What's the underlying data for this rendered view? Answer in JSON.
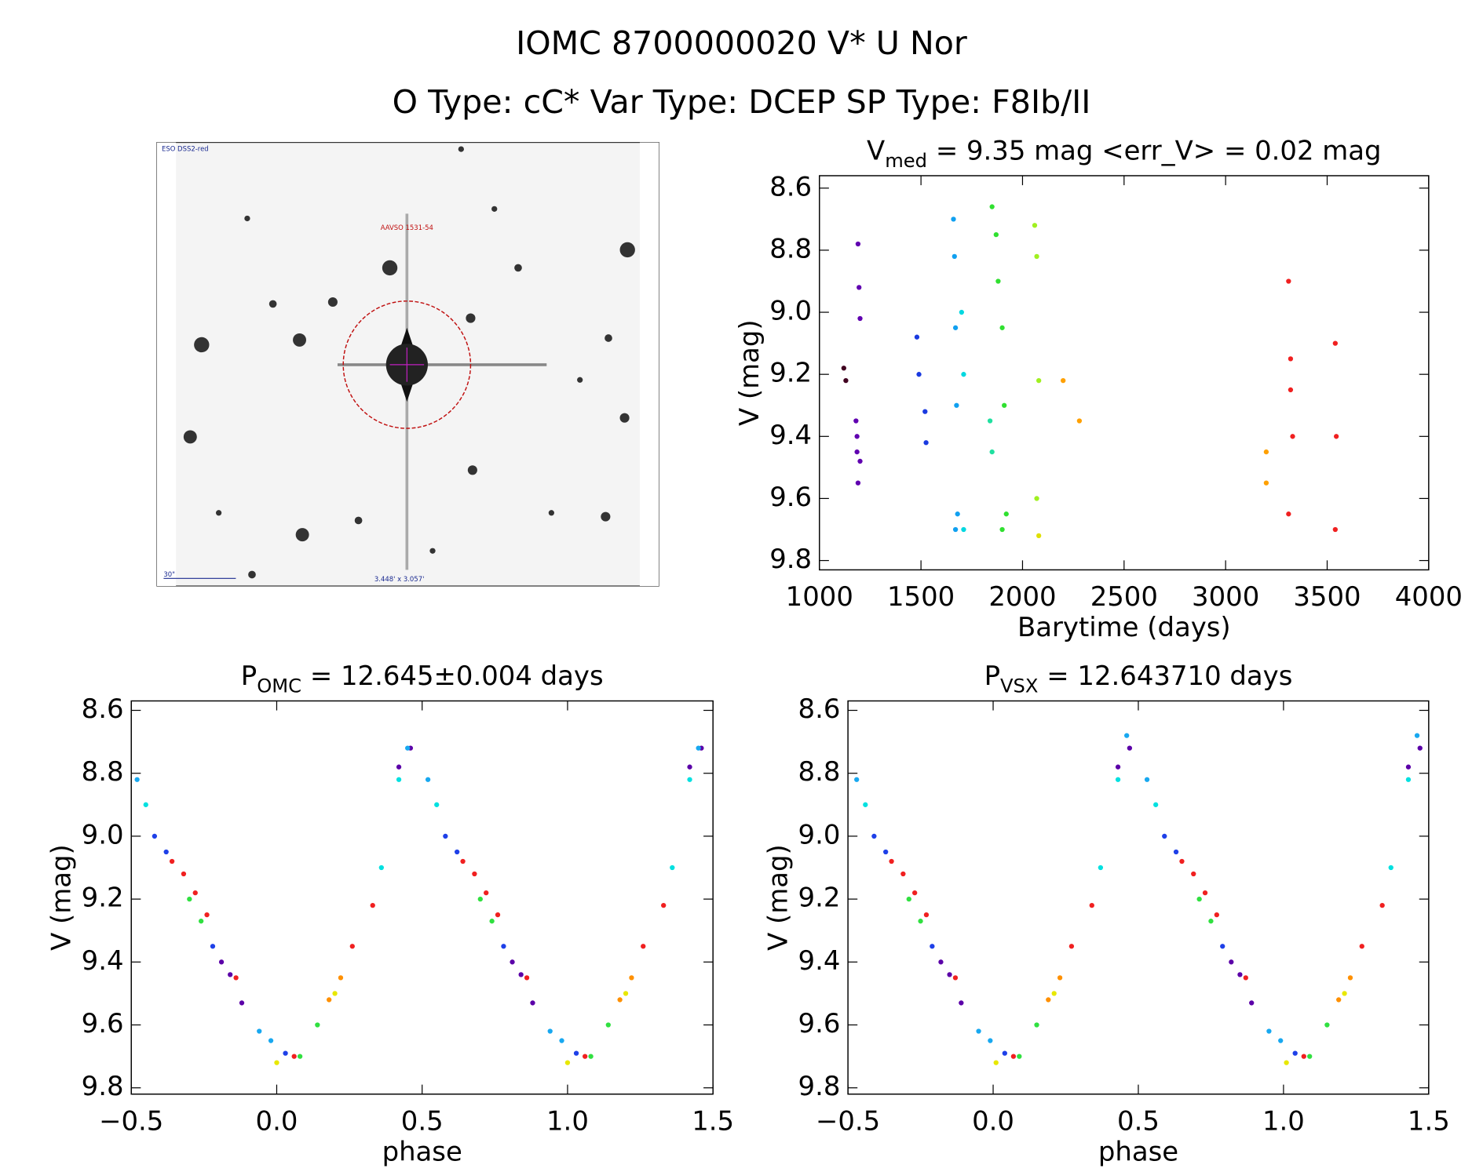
{
  "header": {
    "title": "IOMC 8700000020   V* U Nor",
    "subtitle": "O Type: cC*  Var Type: DCEP  SP Type: F8Ib/II"
  },
  "image": {
    "survey": "ESO DSS2-red",
    "target": "AAVSO 1531-54",
    "scale": "30\"",
    "size": "3.448' x 3.057'"
  },
  "chart_data": [
    {
      "type": "scatter",
      "title": {
        "text": "V",
        "sub": "med",
        "rest": " = 9.35 mag <err_V> = 0.02 mag"
      },
      "xlabel": "Barytime (days)",
      "ylabel": "V (mag)",
      "xlim": [
        1000,
        4000
      ],
      "xticks": [
        1000,
        1500,
        2000,
        2500,
        3000,
        3500,
        4000
      ],
      "ylim": [
        9.83,
        8.56
      ],
      "yticks": [
        8.6,
        8.8,
        {
          "value": 9,
          "label": "9.0"
        },
        9.2,
        9.4,
        9.6,
        9.8
      ],
      "series": [
        {
          "color": "#400020",
          "x": [
            1120,
            1130
          ],
          "values": [
            9.18,
            9.22
          ]
        },
        {
          "color": "#6000b0",
          "x": [
            1180,
            1185,
            1190,
            1190,
            1195,
            1200,
            1200,
            1185
          ],
          "values": [
            9.35,
            9.45,
            9.55,
            8.78,
            8.92,
            9.02,
            9.48,
            9.4
          ]
        },
        {
          "color": "#1a3ae0",
          "x": [
            1480,
            1490,
            1520,
            1525
          ],
          "values": [
            9.08,
            9.2,
            9.32,
            9.42
          ]
        },
        {
          "color": "#10a0f0",
          "x": [
            1660,
            1665,
            1670,
            1675,
            1680,
            1670
          ],
          "values": [
            8.7,
            8.82,
            9.05,
            9.3,
            9.65,
            9.7
          ]
        },
        {
          "color": "#00d8e0",
          "x": [
            1700,
            1710,
            1710
          ],
          "values": [
            9.0,
            9.2,
            9.7
          ]
        },
        {
          "color": "#20e0a0",
          "x": [
            1840,
            1850
          ],
          "values": [
            9.35,
            9.45
          ]
        },
        {
          "color": "#30e030",
          "x": [
            1850,
            1870,
            1880,
            1900,
            1910,
            1920,
            1900
          ],
          "values": [
            8.66,
            8.75,
            8.9,
            9.05,
            9.3,
            9.65,
            9.7
          ]
        },
        {
          "color": "#a0f020",
          "x": [
            2060,
            2070,
            2080,
            2070
          ],
          "values": [
            8.72,
            8.82,
            9.22,
            9.6
          ]
        },
        {
          "color": "#e0e000",
          "x": [
            2080
          ],
          "values": [
            9.72
          ]
        },
        {
          "color": "#ffa000",
          "x": [
            2200,
            2280,
            3200,
            3200
          ],
          "values": [
            9.22,
            9.35,
            9.45,
            9.55
          ]
        },
        {
          "color": "#f02020",
          "x": [
            3310,
            3320,
            3320,
            3330,
            3310,
            3540,
            3545,
            3540
          ],
          "values": [
            8.9,
            9.15,
            9.25,
            9.4,
            9.65,
            9.1,
            9.4,
            9.7
          ]
        }
      ]
    },
    {
      "type": "scatter",
      "title": {
        "text": "P",
        "sub": "OMC",
        "rest": " = 12.645±0.004 days"
      },
      "xlabel": "phase",
      "ylabel": "V (mag)",
      "xlim": [
        -0.5,
        1.5
      ],
      "xticks": [
        {
          "value": -0.5,
          "label": "−0.5"
        },
        {
          "value": 0,
          "label": "0.0"
        },
        0.5,
        {
          "value": 1,
          "label": "1.0"
        },
        1.5
      ],
      "ylim": [
        9.82,
        8.57
      ],
      "yticks": [
        8.6,
        8.8,
        {
          "value": 9,
          "label": "9.0"
        },
        9.2,
        9.4,
        9.6,
        9.8
      ],
      "series": [
        {
          "color": "#5b00a8",
          "x": [
            -0.19,
            -0.16,
            -0.12,
            0.42,
            0.46,
            0.81,
            0.84,
            0.88,
            1.42,
            1.46
          ],
          "values": [
            9.4,
            9.44,
            9.53,
            8.78,
            8.72,
            9.4,
            9.44,
            9.53,
            8.78,
            8.72
          ]
        },
        {
          "color": "#1e40e8",
          "x": [
            -0.42,
            -0.38,
            -0.22,
            0.03,
            0.58,
            0.62,
            0.78,
            1.03
          ],
          "values": [
            9.0,
            9.05,
            9.35,
            9.69,
            9.0,
            9.05,
            9.35,
            9.69
          ]
        },
        {
          "color": "#18a8f0",
          "x": [
            -0.48,
            -0.06,
            -0.02,
            0.45,
            0.52,
            0.94,
            0.98,
            1.45
          ],
          "values": [
            8.82,
            9.62,
            9.65,
            8.72,
            8.82,
            9.62,
            9.65,
            8.72
          ]
        },
        {
          "color": "#00e0e0",
          "x": [
            -0.45,
            0.36,
            0.42,
            0.55,
            1.36,
            1.42
          ],
          "values": [
            8.9,
            9.1,
            8.82,
            8.9,
            9.1,
            8.82
          ]
        },
        {
          "color": "#30e040",
          "x": [
            -0.3,
            -0.26,
            0.08,
            0.14,
            0.7,
            0.74,
            1.08,
            1.14
          ],
          "values": [
            9.2,
            9.27,
            9.7,
            9.6,
            9.2,
            9.27,
            9.7,
            9.6
          ]
        },
        {
          "color": "#e8e800",
          "x": [
            0.0,
            0.2,
            1.0,
            1.2
          ],
          "values": [
            9.72,
            9.5,
            9.72,
            9.5
          ]
        },
        {
          "color": "#ff9000",
          "x": [
            0.18,
            0.22,
            1.18,
            1.22
          ],
          "values": [
            9.52,
            9.45,
            9.52,
            9.45
          ]
        },
        {
          "color": "#f02020",
          "x": [
            -0.36,
            -0.32,
            -0.28,
            -0.24,
            -0.14,
            0.06,
            0.26,
            0.33,
            0.64,
            0.68,
            0.72,
            0.76,
            0.86,
            1.06,
            1.26,
            1.33
          ],
          "values": [
            9.08,
            9.12,
            9.18,
            9.25,
            9.45,
            9.7,
            9.35,
            9.22,
            9.08,
            9.12,
            9.18,
            9.25,
            9.45,
            9.7,
            9.35,
            9.22
          ]
        }
      ]
    },
    {
      "type": "scatter",
      "title": {
        "text": "P",
        "sub": "VSX",
        "rest": " = 12.643710 days"
      },
      "xlabel": "phase",
      "ylabel": "V (mag)",
      "xlim": [
        -0.5,
        1.5
      ],
      "xticks": [
        {
          "value": -0.5,
          "label": "−0.5"
        },
        {
          "value": 0,
          "label": "0.0"
        },
        0.5,
        {
          "value": 1,
          "label": "1.0"
        },
        1.5
      ],
      "ylim": [
        9.82,
        8.57
      ],
      "yticks": [
        8.6,
        8.8,
        {
          "value": 9,
          "label": "9.0"
        },
        9.2,
        9.4,
        9.6,
        9.8
      ],
      "series": [
        {
          "color": "#5b00a8",
          "x": [
            -0.18,
            -0.15,
            -0.11,
            0.43,
            0.47,
            0.82,
            0.85,
            0.89,
            1.43,
            1.47
          ],
          "values": [
            9.4,
            9.44,
            9.53,
            8.78,
            8.72,
            9.4,
            9.44,
            9.53,
            8.78,
            8.72
          ]
        },
        {
          "color": "#1e40e8",
          "x": [
            -0.41,
            -0.37,
            -0.21,
            0.04,
            0.59,
            0.63,
            0.79,
            1.04
          ],
          "values": [
            9.0,
            9.05,
            9.35,
            9.69,
            9.0,
            9.05,
            9.35,
            9.69
          ]
        },
        {
          "color": "#18a8f0",
          "x": [
            -0.47,
            -0.05,
            -0.01,
            0.46,
            0.53,
            0.95,
            0.99,
            1.46
          ],
          "values": [
            8.82,
            9.62,
            9.65,
            8.68,
            8.82,
            9.62,
            9.65,
            8.68
          ]
        },
        {
          "color": "#00e0e0",
          "x": [
            -0.44,
            0.37,
            0.43,
            0.56,
            1.37,
            1.43
          ],
          "values": [
            8.9,
            9.1,
            8.82,
            8.9,
            9.1,
            8.82
          ]
        },
        {
          "color": "#30e040",
          "x": [
            -0.29,
            -0.25,
            0.09,
            0.15,
            0.71,
            0.75,
            1.09,
            1.15
          ],
          "values": [
            9.2,
            9.27,
            9.7,
            9.6,
            9.2,
            9.27,
            9.7,
            9.6
          ]
        },
        {
          "color": "#e8e800",
          "x": [
            0.01,
            0.21,
            1.01,
            1.21
          ],
          "values": [
            9.72,
            9.5,
            9.72,
            9.5
          ]
        },
        {
          "color": "#ff9000",
          "x": [
            0.19,
            0.23,
            1.19,
            1.23
          ],
          "values": [
            9.52,
            9.45,
            9.52,
            9.45
          ]
        },
        {
          "color": "#f02020",
          "x": [
            -0.35,
            -0.31,
            -0.27,
            -0.23,
            -0.13,
            0.07,
            0.27,
            0.34,
            0.65,
            0.69,
            0.73,
            0.77,
            0.87,
            1.07,
            1.27,
            1.34
          ],
          "values": [
            9.08,
            9.12,
            9.18,
            9.25,
            9.45,
            9.7,
            9.35,
            9.22,
            9.08,
            9.12,
            9.18,
            9.25,
            9.45,
            9.7,
            9.35,
            9.22
          ]
        }
      ]
    }
  ]
}
